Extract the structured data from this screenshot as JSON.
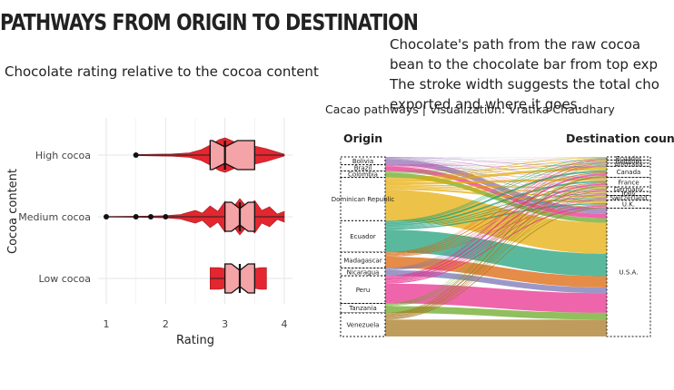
{
  "title": "PATHWAYS FROM ORIGIN TO DESTINATION",
  "subtitle": "Chocolate rating relative to the cocoa content",
  "description_lines": [
    "Chocolate's path from the raw cocoa",
    "bean to the chocolate bar from top exp",
    " The stroke width suggests the total cho",
    "exported and where it goes."
  ],
  "credit": "Cacao pathways | Visualization: Vratika Chaudhary",
  "colors": {
    "violin_fill": "#e3262f",
    "box_fill": "#f4a3a6",
    "grid": "#e6e6e6"
  },
  "chart_data": [
    {
      "type": "violin",
      "xlabel": "Rating",
      "ylabel": "Cocoa content",
      "xlim": [
        1,
        4
      ],
      "xticks": [
        "1",
        "2",
        "3",
        "4"
      ],
      "grid": true,
      "categories": [
        "High cocoa",
        "Medium cocoa",
        "Low cocoa"
      ],
      "groups": [
        {
          "name": "High cocoa",
          "min": 1.5,
          "max": 4.0,
          "q1": 2.75,
          "median": 3.0,
          "q3": 3.5,
          "outliers": [
            1.5
          ],
          "density": [
            [
              1.5,
              0.03
            ],
            [
              1.8,
              0.05
            ],
            [
              2.1,
              0.06
            ],
            [
              2.4,
              0.12
            ],
            [
              2.6,
              0.3
            ],
            [
              2.75,
              0.55
            ],
            [
              2.9,
              0.85
            ],
            [
              3.0,
              0.95
            ],
            [
              3.15,
              0.75
            ],
            [
              3.3,
              0.6
            ],
            [
              3.5,
              0.5
            ],
            [
              3.7,
              0.35
            ],
            [
              3.9,
              0.15
            ],
            [
              4.0,
              0.05
            ]
          ]
        },
        {
          "name": "Medium cocoa",
          "min": 1.0,
          "max": 4.0,
          "q1": 3.0,
          "median": 3.25,
          "q3": 3.5,
          "outliers": [
            1.0,
            1.5,
            1.75,
            2.0
          ],
          "density": [
            [
              1.0,
              0.02
            ],
            [
              1.5,
              0.03
            ],
            [
              1.75,
              0.04
            ],
            [
              2.0,
              0.06
            ],
            [
              2.25,
              0.12
            ],
            [
              2.5,
              0.35
            ],
            [
              2.62,
              0.2
            ],
            [
              2.75,
              0.6
            ],
            [
              2.88,
              0.3
            ],
            [
              3.0,
              0.85
            ],
            [
              3.12,
              0.45
            ],
            [
              3.25,
              1.0
            ],
            [
              3.38,
              0.5
            ],
            [
              3.5,
              0.9
            ],
            [
              3.62,
              0.35
            ],
            [
              3.75,
              0.55
            ],
            [
              3.88,
              0.15
            ],
            [
              4.0,
              0.3
            ]
          ]
        },
        {
          "name": "Low cocoa",
          "min": 2.75,
          "max": 3.5,
          "q1": 3.0,
          "median": 3.25,
          "q3": 3.5,
          "outliers": [],
          "density": [
            [
              2.75,
              0.6
            ],
            [
              2.9,
              0.6
            ],
            [
              3.0,
              0.55
            ],
            [
              3.1,
              0.45
            ],
            [
              3.2,
              0.35
            ],
            [
              3.25,
              0.3
            ],
            [
              3.3,
              0.35
            ],
            [
              3.4,
              0.45
            ],
            [
              3.5,
              0.55
            ],
            [
              3.6,
              0.6
            ],
            [
              3.7,
              0.6
            ]
          ]
        }
      ]
    },
    {
      "type": "sankey",
      "left_title": "Origin",
      "right_title": "Destination coun",
      "origins": [
        {
          "name": "Bolivia",
          "value": 10,
          "color": "#8f6bb4"
        },
        {
          "name": "Brazil",
          "value": 8,
          "color": "#e7298a"
        },
        {
          "name": "Colombia",
          "value": 8,
          "color": "#66a61e"
        },
        {
          "name": "Dominican Republic",
          "value": 55,
          "color": "#e6ab02"
        },
        {
          "name": "Ecuador",
          "value": 40,
          "color": "#1b9e77"
        },
        {
          "name": "Madagascar",
          "value": 20,
          "color": "#d95f02"
        },
        {
          "name": "Nicaragua",
          "value": 10,
          "color": "#7570b3"
        },
        {
          "name": "Peru",
          "value": 35,
          "color": "#e7298a"
        },
        {
          "name": "Tanzania",
          "value": 12,
          "color": "#66a61e"
        },
        {
          "name": "Venezuela",
          "value": 30,
          "color": "#a6761d"
        }
      ],
      "destinations": [
        {
          "name": "Ecuador",
          "value": 4
        },
        {
          "name": "Belgium",
          "value": 4
        },
        {
          "name": "Australia",
          "value": 4
        },
        {
          "name": "Canada",
          "value": 14
        },
        {
          "name": "France",
          "value": 12
        },
        {
          "name": "Germany",
          "value": 6
        },
        {
          "name": "Italy",
          "value": 5
        },
        {
          "name": "Switzerland",
          "value": 6
        },
        {
          "name": "U.K.",
          "value": 10
        },
        {
          "name": "U.S.A.",
          "value": 163
        }
      ],
      "display_labels": [
        "Ecuador",
        "Belgium",
        "Australia",
        "Canada",
        "France",
        "Germany",
        "Italy",
        "Switzerland",
        "U.K.",
        "U.S.A."
      ]
    }
  ]
}
